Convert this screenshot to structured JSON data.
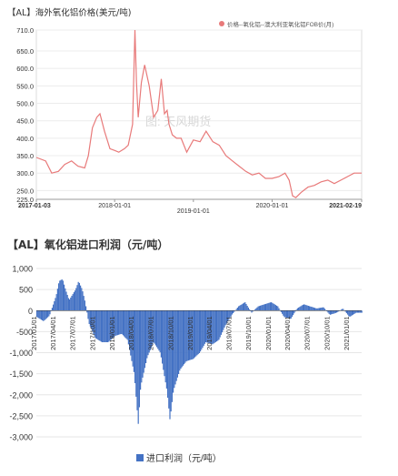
{
  "top_chart": {
    "title": "【AL】海外氧化铝价格(美元/吨)",
    "legend_label": "价格--氧化铝--澳大利亚氧化铝FOB价(月)",
    "watermark": "图: 天风期货",
    "y_ticks": [
      "710.0",
      "650.0",
      "600.0",
      "550.0",
      "500.0",
      "450.0",
      "400.0",
      "350.0",
      "300.0",
      "250.0",
      "225.0"
    ],
    "x_ticks": [
      "2017-01-03",
      "2018-01-01",
      "2019-01-01",
      "2020-01-01",
      "2021-02-19"
    ],
    "line_color": "#e87a7a"
  },
  "bottom_chart": {
    "title": "【AL】氧化铝进口利润（元/吨）",
    "legend_label": "进口利润（元/吨）",
    "y_ticks": [
      "1,000",
      "500",
      "0",
      "-500",
      "-1,000",
      "-1,500",
      "-2,000",
      "-2,500",
      "-3,000"
    ],
    "x_ticks": [
      "2017/01/01",
      "2017/04/01",
      "2017/07/01",
      "2017/10/01",
      "2018/01/01",
      "2018/04/01",
      "2018/07/01",
      "2018/10/01",
      "2019/01/01",
      "2019/04/01",
      "2019/07/01",
      "2019/10/01",
      "2020/01/01",
      "2020/04/01",
      "2020/07/01",
      "2020/10/01",
      "2021/01/01"
    ],
    "bar_color": "#4472c4"
  },
  "chart_data": [
    {
      "type": "line",
      "title": "【AL】海外氧化铝价格(美元/吨)",
      "ylim": [
        225,
        710
      ],
      "x_range": [
        "2017-01-03",
        "2021-02-19"
      ],
      "series": [
        {
          "name": "价格--氧化铝--澳大利亚氧化铝FOB价(月)",
          "x": [
            "2017-01-03",
            "2017-02-15",
            "2017-03-15",
            "2017-04-15",
            "2017-05-15",
            "2017-06-15",
            "2017-07-15",
            "2017-08-15",
            "2017-09-01",
            "2017-09-20",
            "2017-10-10",
            "2017-10-25",
            "2017-11-15",
            "2017-12-10",
            "2018-01-01",
            "2018-01-20",
            "2018-02-15",
            "2018-03-05",
            "2018-03-25",
            "2018-04-05",
            "2018-04-12",
            "2018-04-20",
            "2018-05-05",
            "2018-05-20",
            "2018-06-10",
            "2018-07-01",
            "2018-07-20",
            "2018-08-05",
            "2018-08-20",
            "2018-09-01",
            "2018-09-10",
            "2018-09-25",
            "2018-10-15",
            "2018-11-05",
            "2018-12-01",
            "2019-01-01",
            "2019-02-01",
            "2019-03-01",
            "2019-04-01",
            "2019-05-01",
            "2019-06-01",
            "2019-07-01",
            "2019-08-01",
            "2019-09-01",
            "2019-10-01",
            "2019-11-01",
            "2019-12-01",
            "2020-01-01",
            "2020-02-01",
            "2020-03-01",
            "2020-03-20",
            "2020-04-05",
            "2020-04-20",
            "2020-05-15",
            "2020-06-15",
            "2020-07-15",
            "2020-08-15",
            "2020-09-15",
            "2020-10-15",
            "2020-11-15",
            "2020-12-15",
            "2021-01-15",
            "2021-02-19"
          ],
          "y": [
            345,
            335,
            300,
            305,
            325,
            335,
            320,
            315,
            350,
            430,
            460,
            470,
            420,
            370,
            365,
            360,
            370,
            380,
            440,
            710,
            560,
            460,
            560,
            610,
            550,
            460,
            480,
            570,
            470,
            480,
            440,
            410,
            400,
            400,
            360,
            395,
            390,
            420,
            390,
            380,
            350,
            335,
            320,
            305,
            295,
            300,
            285,
            285,
            290,
            300,
            280,
            235,
            230,
            245,
            260,
            265,
            275,
            280,
            270,
            280,
            290,
            300,
            300
          ]
        }
      ]
    },
    {
      "type": "bar",
      "title": "【AL】氧化铝进口利润（元/吨）",
      "ylim": [
        -3000,
        1000
      ],
      "x_range": [
        "2017/01/01",
        "2021/03/01"
      ],
      "series": [
        {
          "name": "进口利润（元/吨）",
          "x": [
            "2017/01/01",
            "2017/02/01",
            "2017/03/01",
            "2017/04/01",
            "2017/04/15",
            "2017/05/01",
            "2017/05/15",
            "2017/06/01",
            "2017/07/01",
            "2017/07/15",
            "2017/08/01",
            "2017/08/15",
            "2017/09/01",
            "2017/10/01",
            "2017/11/01",
            "2017/12/01",
            "2018/01/01",
            "2018/02/01",
            "2018/03/01",
            "2018/04/01",
            "2018/04/20",
            "2018/05/01",
            "2018/06/01",
            "2018/07/01",
            "2018/08/01",
            "2018/09/01",
            "2018/09/15",
            "2018/10/01",
            "2018/11/01",
            "2018/12/01",
            "2019/01/01",
            "2019/02/01",
            "2019/03/01",
            "2019/04/01",
            "2019/05/01",
            "2019/06/01",
            "2019/07/01",
            "2019/08/01",
            "2019/09/01",
            "2019/10/01",
            "2019/11/01",
            "2019/12/01",
            "2020/01/01",
            "2020/02/01",
            "2020/03/01",
            "2020/04/01",
            "2020/05/01",
            "2020/06/01",
            "2020/07/01",
            "2020/08/01",
            "2020/09/01",
            "2020/10/01",
            "2020/11/01",
            "2020/12/01",
            "2021/01/01",
            "2021/02/01"
          ],
          "y": [
            -150,
            -250,
            -120,
            350,
            700,
            750,
            500,
            250,
            500,
            700,
            500,
            200,
            -300,
            -650,
            -750,
            -750,
            -600,
            -550,
            -700,
            -1500,
            -2700,
            -1800,
            -1100,
            -750,
            -1000,
            -1900,
            -2600,
            -1900,
            -1400,
            -1200,
            -1150,
            -1000,
            -750,
            -800,
            -700,
            -350,
            -100,
            100,
            200,
            -50,
            100,
            150,
            200,
            100,
            -150,
            -200,
            50,
            150,
            100,
            50,
            80,
            -100,
            -50,
            50,
            -150,
            -50
          ]
        }
      ]
    }
  ]
}
